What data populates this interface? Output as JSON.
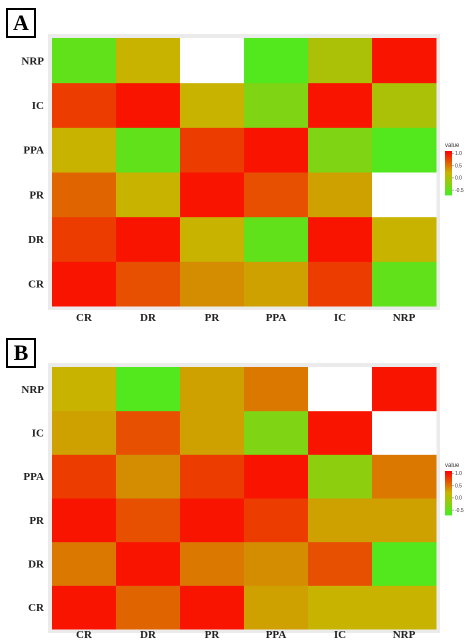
{
  "chart_data": [
    {
      "panel_label": "A",
      "type": "heatmap",
      "x_categories": [
        "CR",
        "DR",
        "PR",
        "PPA",
        "IC",
        "NRP"
      ],
      "y_categories": [
        "CR",
        "DR",
        "PR",
        "PPA",
        "IC",
        "NRP"
      ],
      "values": [
        [
          1.0,
          0.7,
          0.4,
          0.3,
          0.8,
          -0.5
        ],
        [
          0.8,
          1.0,
          0.2,
          -0.5,
          1.0,
          0.2
        ],
        [
          0.6,
          0.2,
          1.0,
          0.7,
          0.3,
          null
        ],
        [
          0.2,
          -0.5,
          0.8,
          1.0,
          -0.3,
          -0.6
        ],
        [
          0.8,
          1.0,
          0.2,
          -0.3,
          1.0,
          0.0
        ],
        [
          -0.5,
          0.2,
          null,
          -0.6,
          0.0,
          1.0
        ]
      ],
      "legend": {
        "title": "value",
        "ticks": [
          "1.0",
          "0.5",
          "0.0",
          "-0.5"
        ],
        "range": [
          -0.7,
          1.1
        ]
      },
      "colors": {
        "low": "#44ee22",
        "mid": "#c8b400",
        "high": "#ff0000",
        "missing": "#ffffff",
        "panel": "#ebebeb"
      }
    },
    {
      "panel_label": "B",
      "type": "heatmap",
      "x_categories": [
        "CR",
        "DR",
        "PR",
        "PPA",
        "IC",
        "NRP"
      ],
      "y_categories": [
        "CR",
        "DR",
        "PR",
        "PPA",
        "IC",
        "NRP"
      ],
      "values": [
        [
          1.0,
          0.6,
          1.0,
          0.3,
          0.2,
          0.2
        ],
        [
          0.5,
          1.0,
          0.5,
          0.4,
          0.7,
          -0.6
        ],
        [
          1.0,
          0.7,
          1.0,
          0.8,
          0.3,
          0.3
        ],
        [
          0.8,
          0.4,
          0.8,
          1.0,
          -0.2,
          0.5
        ],
        [
          0.3,
          0.7,
          0.3,
          -0.3,
          1.0,
          null
        ],
        [
          0.2,
          -0.6,
          0.3,
          0.5,
          null,
          1.0
        ]
      ],
      "legend": {
        "title": "value",
        "ticks": [
          "1.0",
          "0.5",
          "0.0",
          "-0.5"
        ],
        "range": [
          -0.7,
          1.1
        ]
      },
      "colors": {
        "low": "#44ee22",
        "mid": "#c8b400",
        "high": "#ff0000",
        "missing": "#ffffff",
        "panel": "#ebebeb"
      }
    }
  ]
}
